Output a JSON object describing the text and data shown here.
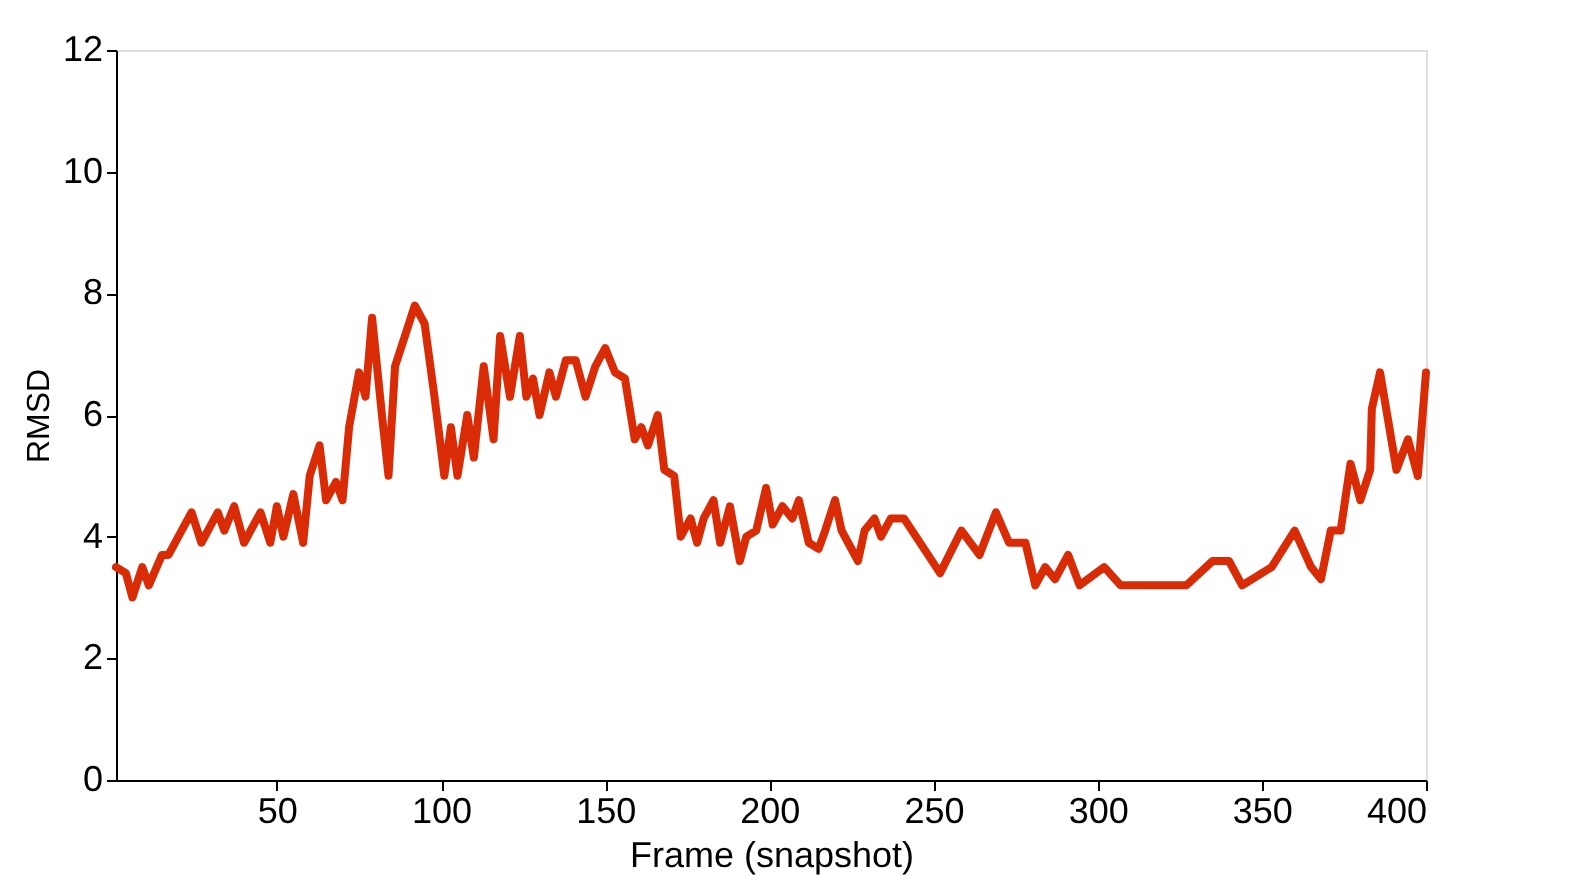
{
  "chart_data": {
    "type": "line",
    "xlabel": "Frame (snapshot)",
    "ylabel": "RMSD",
    "xlim": [
      1,
      400
    ],
    "ylim": [
      0,
      12
    ],
    "xticks": [
      50,
      100,
      150,
      200,
      250,
      300,
      350,
      400
    ],
    "yticks": [
      0,
      2,
      4,
      6,
      8,
      10,
      12
    ],
    "grid": false,
    "marker": "none",
    "line_style": "solid",
    "series": [
      {
        "color": "#d92b05",
        "x": [
          1,
          4,
          6,
          9,
          11,
          15,
          17,
          20,
          24,
          27,
          32,
          34,
          37,
          40,
          45,
          48,
          50,
          52,
          55,
          58,
          60,
          63,
          65,
          68,
          70,
          72,
          75,
          77,
          79,
          82,
          84,
          86,
          89,
          92,
          95,
          98,
          101,
          103,
          105,
          108,
          110,
          113,
          116,
          118,
          121,
          124,
          126,
          128,
          130,
          133,
          135,
          138,
          141,
          144,
          147,
          150,
          153,
          156,
          159,
          161,
          163,
          166,
          168,
          171,
          173,
          176,
          178,
          180,
          183,
          185,
          188,
          191,
          193,
          196,
          199,
          201,
          204,
          207,
          209,
          212,
          215,
          217,
          220,
          222,
          224,
          227,
          229,
          232,
          234,
          237,
          241,
          252,
          258.5,
          264,
          269,
          273,
          278,
          281,
          284,
          287,
          291,
          294.5,
          302,
          307,
          315,
          327,
          335,
          340,
          344,
          353,
          360,
          365,
          368,
          371,
          374,
          377,
          380,
          383,
          383.5,
          386,
          391,
          394.5,
          397.5,
          400
        ],
        "values": [
          3.5,
          3.4,
          3.0,
          3.5,
          3.2,
          3.7,
          3.7,
          4.0,
          4.4,
          3.9,
          4.4,
          4.1,
          4.5,
          3.9,
          4.4,
          3.9,
          4.5,
          4.0,
          4.7,
          3.9,
          5.0,
          5.5,
          4.6,
          4.9,
          4.6,
          5.8,
          6.7,
          6.3,
          7.6,
          6.0,
          5.0,
          6.8,
          7.3,
          7.8,
          7.5,
          6.3,
          5.0,
          5.8,
          5.0,
          6.0,
          5.3,
          6.8,
          5.6,
          7.3,
          6.3,
          7.3,
          6.3,
          6.6,
          6.0,
          6.7,
          6.3,
          6.9,
          6.9,
          6.3,
          6.8,
          7.1,
          6.7,
          6.6,
          5.6,
          5.8,
          5.5,
          6.0,
          5.1,
          5.0,
          4.0,
          4.3,
          3.9,
          4.3,
          4.6,
          3.9,
          4.5,
          3.6,
          4.0,
          4.1,
          4.8,
          4.2,
          4.5,
          4.3,
          4.6,
          3.9,
          3.8,
          4.1,
          4.6,
          4.1,
          3.9,
          3.6,
          4.1,
          4.3,
          4.0,
          4.3,
          4.3,
          3.4,
          4.1,
          3.7,
          4.4,
          3.9,
          3.9,
          3.2,
          3.5,
          3.3,
          3.7,
          3.2,
          3.5,
          3.2,
          3.2,
          3.2,
          3.6,
          3.6,
          3.2,
          3.5,
          4.1,
          3.5,
          3.3,
          4.1,
          4.1,
          5.2,
          4.6,
          5.1,
          6.1,
          6.7,
          5.1,
          5.6,
          5.0,
          6.7
        ]
      }
    ]
  }
}
